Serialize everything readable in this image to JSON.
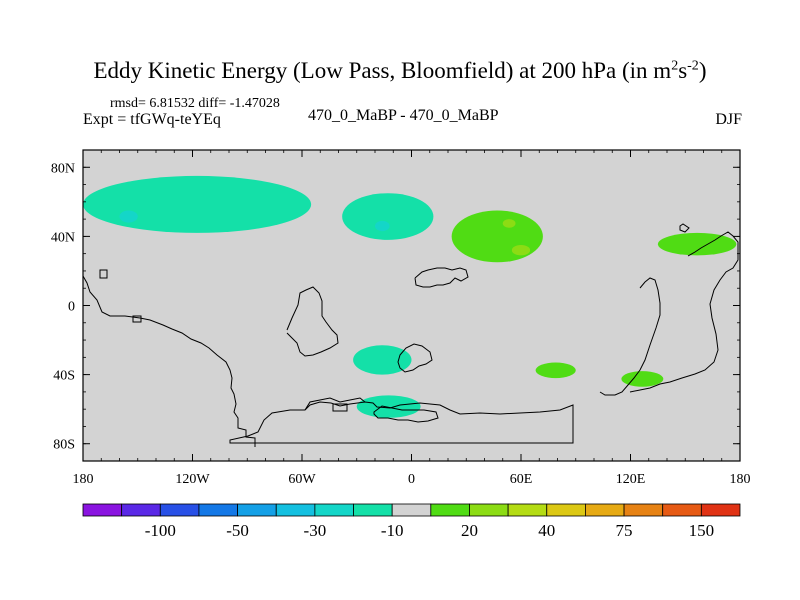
{
  "chart_data": {
    "type": "contour-map",
    "title_main": "Eddy Kinetic Energy (Low Pass, Bloomfield) at 200 hPa (in m",
    "title_sup1": "2",
    "title_mid": "s",
    "title_sup2": "-2",
    "title_end": ")",
    "stats": "rmsd= 6.81532 diff= -1.47028",
    "expt": "Expt = tfGWq-teYEq",
    "center_label": "470_0_MaBP - 470_0_MaBP",
    "season": "DJF",
    "lon_range": [
      -180,
      180
    ],
    "lat_range": [
      -90,
      90
    ],
    "x_ticks": [
      {
        "lon": -180,
        "label": "180"
      },
      {
        "lon": -120,
        "label": "120W"
      },
      {
        "lon": -60,
        "label": "60W"
      },
      {
        "lon": 0,
        "label": "0"
      },
      {
        "lon": 60,
        "label": "60E"
      },
      {
        "lon": 120,
        "label": "120E"
      },
      {
        "lon": 180,
        "label": "180"
      }
    ],
    "y_ticks": [
      {
        "lat": 80,
        "label": "80N"
      },
      {
        "lat": 40,
        "label": "40N"
      },
      {
        "lat": 0,
        "label": "0"
      },
      {
        "lat": -40,
        "label": "40S"
      },
      {
        "lat": -80,
        "label": "80S"
      }
    ],
    "background_color": "#d3d3d3",
    "colorbar": {
      "colors": [
        "#8a14e0",
        "#5a28e6",
        "#2850e6",
        "#1478e6",
        "#14a0e6",
        "#14c0e0",
        "#14d6c8",
        "#14e0a8",
        "#d3d3d3",
        "#50dc14",
        "#8cdc14",
        "#b4dc14",
        "#dcc814",
        "#e6aa14",
        "#e68214",
        "#e65a14",
        "#e03214"
      ],
      "labels": [
        {
          "index": 2,
          "text": "-100"
        },
        {
          "index": 4,
          "text": "-50"
        },
        {
          "index": 6,
          "text": "-30"
        },
        {
          "index": 8,
          "text": "-10"
        },
        {
          "index": 10,
          "text": "20"
        },
        {
          "index": 12,
          "text": "40"
        },
        {
          "index": 14,
          "text": "75"
        },
        {
          "index": 16,
          "text": "150"
        }
      ]
    },
    "anomaly_regions": [
      {
        "id": "n-pacific-atlantic",
        "level": -10,
        "color": "#14e0a8",
        "lon": [
          -180,
          -55
        ],
        "lat": [
          42,
          75
        ]
      },
      {
        "id": "n-pacific-core",
        "level": -20,
        "color": "#14d6c8",
        "lon": [
          -160,
          -150
        ],
        "lat": [
          48,
          55
        ]
      },
      {
        "id": "n-atlantic-blob",
        "level": -10,
        "color": "#14e0a8",
        "lon": [
          -38,
          12
        ],
        "lat": [
          38,
          65
        ]
      },
      {
        "id": "n-atlantic-core",
        "level": -20,
        "color": "#14d6c8",
        "lon": [
          -20,
          -12
        ],
        "lat": [
          43,
          49
        ]
      },
      {
        "id": "eurasia-arc",
        "level": 20,
        "color": "#50dc14",
        "lon": [
          22,
          72
        ],
        "lat": [
          25,
          55
        ]
      },
      {
        "id": "eurasia-core-1",
        "level": 30,
        "color": "#8cdc14",
        "lon": [
          50,
          57
        ],
        "lat": [
          45,
          50
        ]
      },
      {
        "id": "eurasia-core-2",
        "level": 30,
        "color": "#8cdc14",
        "lon": [
          55,
          65
        ],
        "lat": [
          29,
          35
        ]
      },
      {
        "id": "e-asia-blob",
        "level": 20,
        "color": "#50dc14",
        "lon": [
          135,
          178
        ],
        "lat": [
          29,
          42
        ]
      },
      {
        "id": "s-atlantic",
        "level": -10,
        "color": "#14e0a8",
        "lon": [
          -32,
          0
        ],
        "lat": [
          -40,
          -23
        ]
      },
      {
        "id": "s-ocean",
        "level": -10,
        "color": "#14e0a8",
        "lon": [
          -30,
          5
        ],
        "lat": [
          -65,
          -52
        ]
      },
      {
        "id": "s-indian",
        "level": 20,
        "color": "#50dc14",
        "lon": [
          68,
          90
        ],
        "lat": [
          -42,
          -33
        ]
      },
      {
        "id": "s-pacific",
        "level": 20,
        "color": "#50dc14",
        "lon": [
          115,
          138
        ],
        "lat": [
          -47,
          -38
        ]
      }
    ]
  }
}
